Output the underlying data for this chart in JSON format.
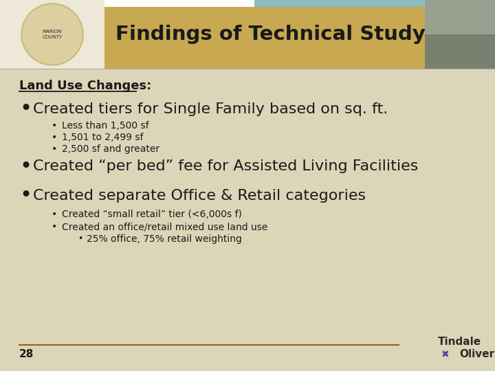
{
  "title": "Findings of Technical Study",
  "title_color": "#1a1a1a",
  "header_bg_color": "#C8A951",
  "slide_bg_color": "#DDD5B8",
  "section_heading": "Land Use Changes:",
  "bullet1": "Created tiers for Single Family based on sq. ft.",
  "sub_bullets1": [
    "Less than 1,500 sf",
    "1,501 to 2,499 sf",
    "2,500 sf and greater"
  ],
  "bullet2": "Created “per bed” fee for Assisted Living Facilities",
  "bullet3": "Created separate Office & Retail categories",
  "sub_bullets3": [
    "Created “small retail” tier (<6,000s f)",
    "Created an office/retail mixed use land use"
  ],
  "sub_sub_bullet3": "25% office, 75% retail weighting",
  "page_number": "28",
  "footer_line_color": "#8B6914",
  "logo_text1": "Tindale",
  "logo_text2": "Oliver",
  "logo_color1": "#1a1a1a",
  "logo_color2": "#C8285A"
}
